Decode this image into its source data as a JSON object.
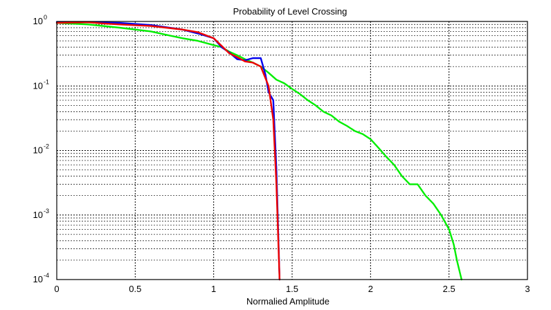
{
  "chart_data": {
    "type": "line",
    "title": "Probability of Level Crossing",
    "xlabel": "Normalied Amplitude",
    "ylabel": "",
    "xlim": [
      0,
      3
    ],
    "ylim": [
      0.0001,
      1
    ],
    "yscale": "log",
    "grid": true,
    "x_ticks": [
      {
        "value": 0,
        "label": "0"
      },
      {
        "value": 0.5,
        "label": "0.5"
      },
      {
        "value": 1,
        "label": "1"
      },
      {
        "value": 1.5,
        "label": "1.5"
      },
      {
        "value": 2,
        "label": "2"
      },
      {
        "value": 2.5,
        "label": "2.5"
      },
      {
        "value": 3,
        "label": "3"
      }
    ],
    "y_ticks": [
      {
        "value": 1,
        "base": "10",
        "exp": "0"
      },
      {
        "value": 0.1,
        "base": "10",
        "exp": "-1"
      },
      {
        "value": 0.01,
        "base": "10",
        "exp": "-2"
      },
      {
        "value": 0.001,
        "base": "10",
        "exp": "-3"
      },
      {
        "value": 0.0001,
        "base": "10",
        "exp": "-4"
      }
    ],
    "series": [
      {
        "name": "green",
        "color": "#00ee00",
        "x": [
          0,
          0.2,
          0.4,
          0.5,
          0.6,
          0.7,
          0.8,
          0.9,
          1.0,
          1.05,
          1.1,
          1.15,
          1.2,
          1.25,
          1.3,
          1.35,
          1.4,
          1.45,
          1.5,
          1.55,
          1.6,
          1.65,
          1.7,
          1.75,
          1.8,
          1.85,
          1.9,
          1.95,
          2.0,
          2.05,
          2.1,
          2.15,
          2.2,
          2.25,
          2.3,
          2.35,
          2.4,
          2.45,
          2.5,
          2.53,
          2.55,
          2.58
        ],
        "y": [
          0.95,
          0.9,
          0.8,
          0.75,
          0.7,
          0.62,
          0.55,
          0.5,
          0.43,
          0.4,
          0.34,
          0.3,
          0.26,
          0.23,
          0.2,
          0.16,
          0.125,
          0.11,
          0.09,
          0.075,
          0.06,
          0.05,
          0.04,
          0.035,
          0.028,
          0.024,
          0.02,
          0.018,
          0.015,
          0.011,
          0.008,
          0.006,
          0.004,
          0.003,
          0.003,
          0.002,
          0.0015,
          0.001,
          0.0006,
          0.00035,
          0.0002,
          0.0001
        ]
      },
      {
        "name": "blue",
        "color": "#0000ee",
        "x": [
          0,
          0.2,
          0.4,
          0.6,
          0.8,
          0.9,
          1.0,
          1.05,
          1.1,
          1.15,
          1.2,
          1.25,
          1.3,
          1.33,
          1.35,
          1.38,
          1.4,
          1.42
        ],
        "y": [
          0.98,
          0.97,
          0.95,
          0.88,
          0.75,
          0.65,
          0.55,
          0.4,
          0.33,
          0.26,
          0.25,
          0.27,
          0.27,
          0.15,
          0.08,
          0.06,
          0.005,
          0.0001
        ]
      },
      {
        "name": "red",
        "color": "#ee0000",
        "x": [
          0,
          0.2,
          0.3,
          0.4,
          0.6,
          0.8,
          0.9,
          1.0,
          1.05,
          1.1,
          1.15,
          1.2,
          1.25,
          1.3,
          1.35,
          1.38,
          1.4,
          1.42
        ],
        "y": [
          0.95,
          0.97,
          0.93,
          0.9,
          0.85,
          0.75,
          0.68,
          0.55,
          0.42,
          0.32,
          0.28,
          0.24,
          0.23,
          0.2,
          0.1,
          0.03,
          0.003,
          0.0001
        ]
      }
    ]
  }
}
